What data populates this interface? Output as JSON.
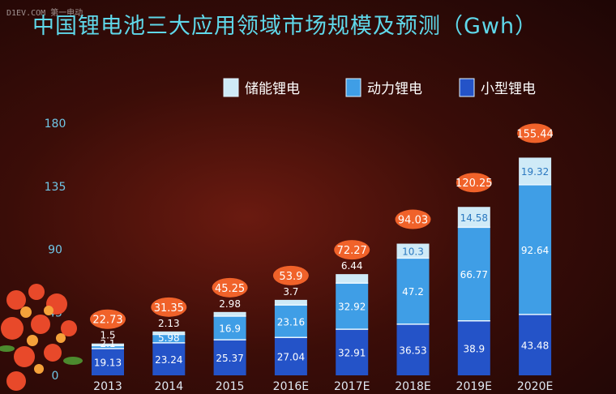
{
  "watermark": "D1EV.COM 第一电动",
  "title": "中国锂电池三大应用领域市场规模及预测（Gwh）",
  "colors": {
    "storage": "#cfeaf7",
    "power": "#3f9ee6",
    "small": "#2453c8",
    "total_badge": "#f0622a",
    "title": "#5fd8ea"
  },
  "chart_data": {
    "type": "bar",
    "stacked": true,
    "title": "中国锂电池三大应用领域市场规模及预测（Gwh）",
    "categories": [
      "2013",
      "2014",
      "2015",
      "2016E",
      "2017E",
      "2018E",
      "2019E",
      "2020E"
    ],
    "series": [
      {
        "name": "小型锂电",
        "values": [
          19.13,
          23.24,
          25.37,
          27.04,
          32.91,
          36.53,
          38.9,
          43.48
        ]
      },
      {
        "name": "动力锂电",
        "values": [
          2.1,
          5.98,
          16.9,
          23.16,
          32.92,
          47.2,
          66.77,
          92.64
        ]
      },
      {
        "name": "储能锂电",
        "values": [
          1.5,
          2.13,
          2.98,
          3.7,
          6.44,
          10.3,
          14.58,
          19.32
        ]
      }
    ],
    "totals": [
      22.73,
      31.35,
      45.25,
      53.9,
      72.27,
      94.03,
      120.25,
      155.44
    ],
    "yticks": [
      0,
      45,
      90,
      135,
      180
    ],
    "ylim": [
      0,
      180
    ],
    "legend_position": "top-right",
    "legend": [
      "储能锂电",
      "动力锂电",
      "小型锂电"
    ]
  }
}
